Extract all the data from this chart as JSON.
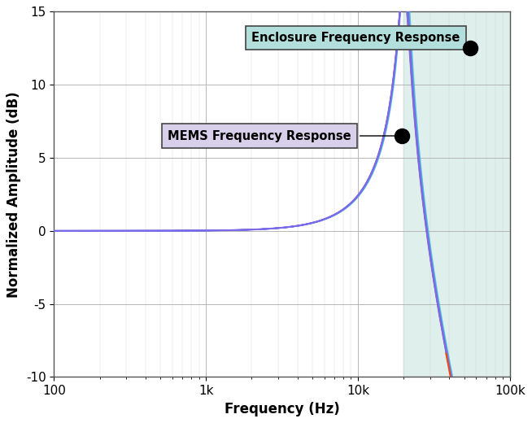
{
  "title": "",
  "xlabel": "Frequency (Hz)",
  "ylabel": "Normalized Amplitude (dB)",
  "xlim": [
    100,
    100000
  ],
  "ylim": [
    -10,
    15
  ],
  "yticks": [
    -10,
    -5,
    0,
    5,
    10,
    15
  ],
  "xtick_labels": [
    "100",
    "1k",
    "10k",
    "100k"
  ],
  "xtick_vals": [
    100,
    1000,
    10000,
    100000
  ],
  "shaded_region_start": 20000,
  "shaded_color": "#b8ddd4",
  "shaded_alpha": 0.45,
  "background_color": "#ffffff",
  "grid_color": "#b0b0b0",
  "annotation_enclosure_text": "Enclosure Frequency Response",
  "annotation_mems_text": "MEMS Frequency Response",
  "annotation_enclosure_box_color": "#b2dfdb",
  "annotation_mems_box_color": "#d8d0ea",
  "enclosure_dot_x": 55000,
  "enclosure_dot_y": 12.5,
  "mems_dot_x": 19500,
  "mems_dot_y": 6.5,
  "curves": [
    {
      "f_res": 20200,
      "Q": 7.5,
      "color": "#7b68ee",
      "lw": 1.2,
      "alpha": 0.95
    },
    {
      "f_res": 20300,
      "Q": 7.8,
      "color": "#6a5acd",
      "lw": 1.2,
      "alpha": 0.9
    },
    {
      "f_res": 20100,
      "Q": 7.2,
      "color": "#8878c8",
      "lw": 1.0,
      "alpha": 0.85
    },
    {
      "f_res": 20400,
      "Q": 8.0,
      "color": "#9370db",
      "lw": 1.0,
      "alpha": 0.85
    },
    {
      "f_res": 20200,
      "Q": 7.6,
      "color": "#7b68ee",
      "lw": 1.0,
      "alpha": 0.8
    },
    {
      "f_res": 20300,
      "Q": 8.2,
      "color": "#6959cd",
      "lw": 1.0,
      "alpha": 0.8
    },
    {
      "f_res": 20100,
      "Q": 7.0,
      "color": "#8b78ee",
      "lw": 1.0,
      "alpha": 0.8
    },
    {
      "f_res": 20400,
      "Q": 8.5,
      "color": "#5f87c8",
      "lw": 1.0,
      "alpha": 0.75
    },
    {
      "f_res": 20600,
      "Q": 9.0,
      "color": "#40b8d8",
      "lw": 1.2,
      "alpha": 0.8
    },
    {
      "f_res": 20000,
      "Q": 7.0,
      "color": "#8b64a0",
      "lw": 1.0,
      "alpha": 0.75
    },
    {
      "f_res": 20100,
      "Q": 6.8,
      "color": "#9b72cf",
      "lw": 1.0,
      "alpha": 0.75
    },
    {
      "f_res": 20200,
      "Q": 7.5,
      "color": "#7b68ee",
      "lw": 1.5,
      "alpha": 1.0
    }
  ],
  "orange_curve": {
    "f_res": 20000,
    "Q": 6.5,
    "color": "#ff4400",
    "lw": 1.5,
    "alpha": 0.9
  }
}
